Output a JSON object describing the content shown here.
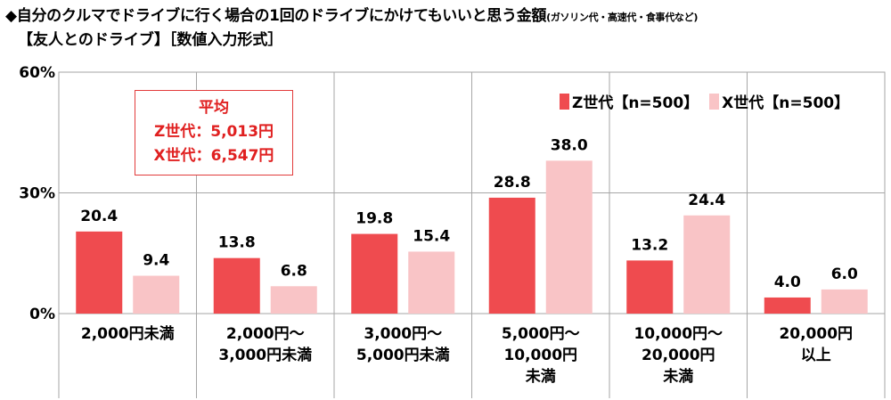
{
  "title": {
    "line1": "◆自分のクルマでドライブに行く場合の1回のドライブにかけてもいいと思う金額",
    "line1_note": "(ガソリン代・高速代・食事代など)",
    "line2": "【友人とのドライブ】［数値入力形式］"
  },
  "average_box": {
    "heading": "平均",
    "z_line": "Z世代：5,013円",
    "x_line": "X世代：6,547円"
  },
  "colors": {
    "z": "#ef4b4f",
    "x": "#f9c4c6",
    "grid": "#a6a6a6",
    "box_border": "#e23b3b"
  },
  "chart_data": {
    "type": "bar",
    "categories": [
      [
        "2,000円未満"
      ],
      [
        "2,000円～",
        "3,000円未満"
      ],
      [
        "3,000円～",
        "5,000円未満"
      ],
      [
        "5,000円～",
        "10,000円",
        "未満"
      ],
      [
        "10,000円～",
        "20,000円",
        "未満"
      ],
      [
        "20,000円",
        "以上"
      ]
    ],
    "series": [
      {
        "name": "Z世代【n=500】",
        "values": [
          20.4,
          13.8,
          19.8,
          28.8,
          13.2,
          4.0
        ]
      },
      {
        "name": "X世代【n=500】",
        "values": [
          9.4,
          6.8,
          15.4,
          38.0,
          24.4,
          6.0
        ]
      }
    ],
    "value_labels": [
      [
        "20.4",
        "13.8",
        "19.8",
        "28.8",
        "13.2",
        "4.0"
      ],
      [
        "9.4",
        "6.8",
        "15.4",
        "38.0",
        "24.4",
        "6.0"
      ]
    ],
    "yticks": [
      "0%",
      "30%",
      "60%"
    ],
    "ylim": [
      0,
      60
    ],
    "legend_position": "top-right"
  }
}
